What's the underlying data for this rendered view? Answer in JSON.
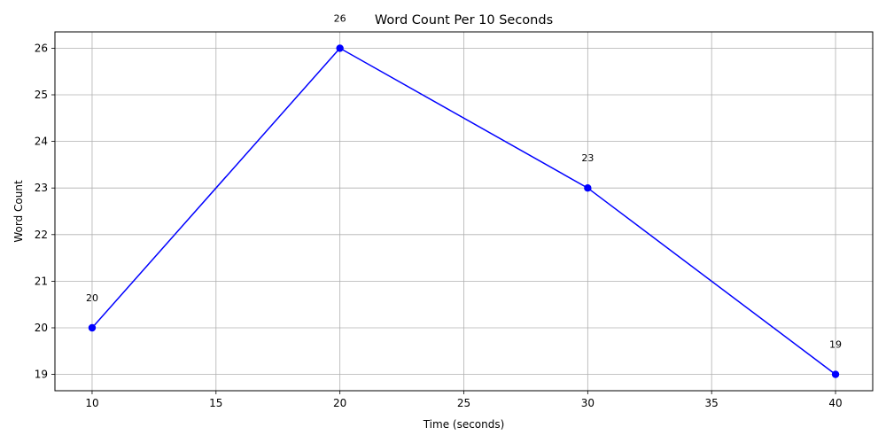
{
  "chart_data": {
    "type": "line",
    "title": "Word Count Per 10 Seconds",
    "xlabel": "Time (seconds)",
    "ylabel": "Word Count",
    "x": [
      10,
      20,
      30,
      40
    ],
    "series": [
      {
        "values": [
          20,
          26,
          23,
          19
        ],
        "color": "#0000ff",
        "marker": "circle"
      }
    ],
    "data_labels": [
      "20",
      "26",
      "23",
      "19"
    ],
    "xlim": [
      8.5,
      41.5
    ],
    "ylim": [
      18.65,
      26.35
    ],
    "xticks": [
      10,
      15,
      20,
      25,
      30,
      35,
      40
    ],
    "yticks": [
      19,
      20,
      21,
      22,
      23,
      24,
      25,
      26
    ],
    "grid": true,
    "legend": false
  }
}
